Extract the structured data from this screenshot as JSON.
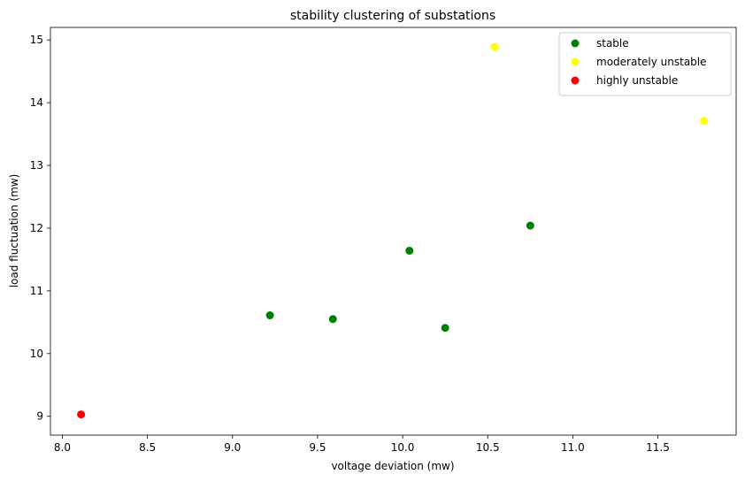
{
  "chart_data": {
    "type": "scatter",
    "title": "stability clustering of substations",
    "xlabel": "voltage deviation (mw)",
    "ylabel": "load fluctuation (mw)",
    "xlim": [
      7.93,
      11.96
    ],
    "ylim": [
      8.7,
      15.2
    ],
    "xticks": [
      "8.0",
      "8.5",
      "9.0",
      "9.5",
      "10.0",
      "10.5",
      "11.0",
      "11.5"
    ],
    "yticks": [
      "9",
      "10",
      "11",
      "12",
      "13",
      "14",
      "15"
    ],
    "grid": false,
    "legend_position": "top-right",
    "series": [
      {
        "name": "stable",
        "color": "#008000",
        "points": [
          [
            9.22,
            10.61
          ],
          [
            9.59,
            10.55
          ],
          [
            10.04,
            11.64
          ],
          [
            10.25,
            10.41
          ],
          [
            10.75,
            12.04
          ]
        ]
      },
      {
        "name": "moderately unstable",
        "color": "#ffff00",
        "points": [
          [
            10.54,
            14.89
          ],
          [
            11.77,
            13.71
          ]
        ]
      },
      {
        "name": "highly unstable",
        "color": "#ff0000",
        "points": [
          [
            8.11,
            9.03
          ]
        ]
      }
    ]
  }
}
